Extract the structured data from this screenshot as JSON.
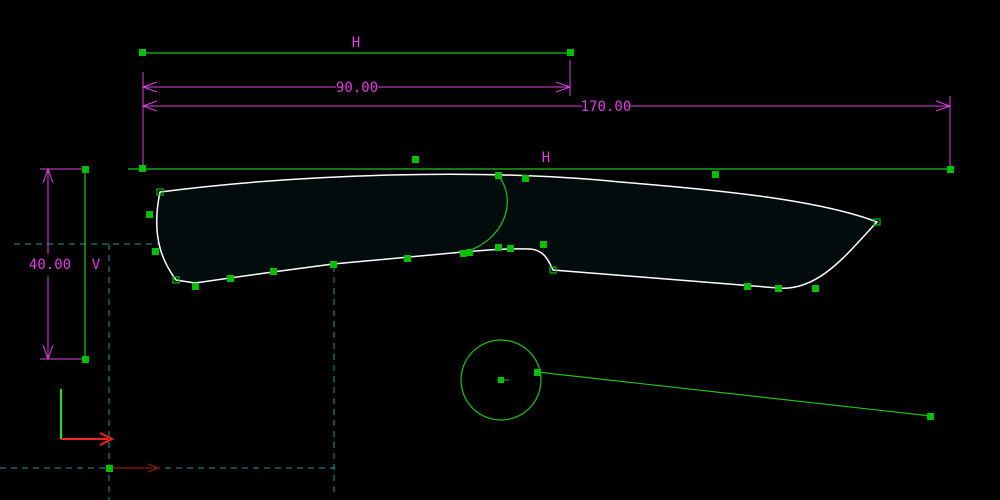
{
  "colors": {
    "background": "#000000",
    "construction": "#20c020",
    "dimension": "#e040e0",
    "profile": "#ffffff",
    "profile_fill": "#020c0c",
    "handle": "#00c000",
    "axis_dashed": "#1f9a9a",
    "axis_x": "#ff2020",
    "axis_y": "#20e020"
  },
  "constraints": {
    "top_horizontal": "H",
    "main_horizontal": "H",
    "vertical": "V"
  },
  "dimensions": {
    "length_90": "90.00",
    "length_170": "170.00",
    "height_40": "40.00"
  },
  "tool": {
    "icon": "x-y-axis-triad-icon"
  }
}
